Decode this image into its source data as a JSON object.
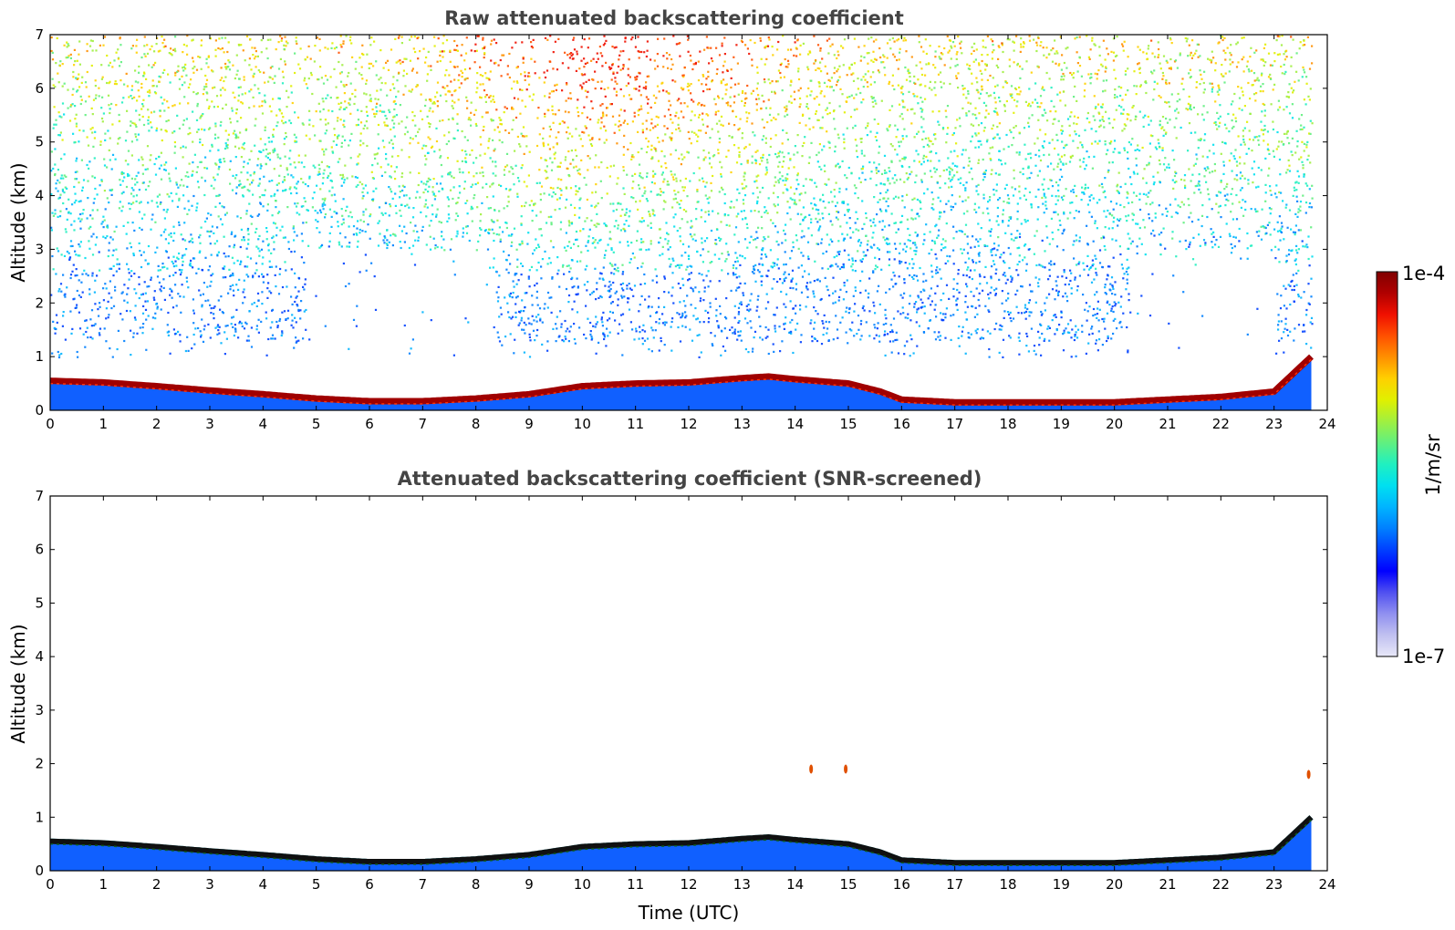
{
  "chart_data": [
    {
      "type": "heatmap",
      "title": "Raw attenuated backscattering coefficient",
      "xlabel": "",
      "ylabel": "Altitude (km)",
      "xlim": [
        0,
        24
      ],
      "ylim": [
        0,
        7
      ],
      "xticks": [
        "0",
        "1",
        "2",
        "3",
        "4",
        "5",
        "6",
        "7",
        "8",
        "9",
        "10",
        "11",
        "12",
        "13",
        "14",
        "15",
        "16",
        "17",
        "18",
        "19",
        "20",
        "21",
        "22",
        "23",
        "24"
      ],
      "yticks": [
        "0",
        "1",
        "2",
        "3",
        "4",
        "5",
        "6",
        "7"
      ],
      "data_end_hour": 23.7,
      "boundary_layer_top_km": {
        "x": [
          0,
          1,
          2,
          3,
          4,
          5,
          6,
          7,
          8,
          9,
          10,
          11,
          12,
          13,
          13.5,
          14,
          15,
          15.6,
          16,
          17,
          18,
          19,
          20,
          21,
          22,
          23,
          23.7
        ],
        "y": [
          0.55,
          0.52,
          0.45,
          0.37,
          0.3,
          0.22,
          0.17,
          0.17,
          0.22,
          0.3,
          0.45,
          0.5,
          0.52,
          0.6,
          0.63,
          0.58,
          0.5,
          0.35,
          0.2,
          0.15,
          0.15,
          0.15,
          0.15,
          0.2,
          0.25,
          0.35,
          1.0
        ]
      },
      "noise_field": "scattered noise, strongest (yellow-orange, ~1e-5) above 4 km around 9-12 UTC, sparse and blue near 1.2-2.5 km, clear gaps 5-8 UTC and 20-23 UTC below 3 km"
    },
    {
      "type": "heatmap",
      "title": "Attenuated backscattering coefficient (SNR-screened)",
      "xlabel": "Time (UTC)",
      "ylabel": "Altitude (km)",
      "xlim": [
        0,
        24
      ],
      "ylim": [
        0,
        7
      ],
      "xticks": [
        "0",
        "1",
        "2",
        "3",
        "4",
        "5",
        "6",
        "7",
        "8",
        "9",
        "10",
        "11",
        "12",
        "13",
        "14",
        "15",
        "16",
        "17",
        "18",
        "19",
        "20",
        "21",
        "22",
        "23",
        "24"
      ],
      "yticks": [
        "0",
        "1",
        "2",
        "3",
        "4",
        "5",
        "6",
        "7"
      ],
      "data_end_hour": 23.7,
      "boundary_layer_top_km": {
        "x": [
          0,
          1,
          2,
          3,
          4,
          5,
          6,
          7,
          8,
          9,
          10,
          11,
          12,
          13,
          13.5,
          14,
          15,
          15.6,
          16,
          17,
          18,
          19,
          20,
          21,
          22,
          23,
          23.7
        ],
        "y": [
          0.55,
          0.52,
          0.45,
          0.37,
          0.3,
          0.22,
          0.17,
          0.17,
          0.22,
          0.3,
          0.45,
          0.5,
          0.52,
          0.6,
          0.63,
          0.58,
          0.5,
          0.35,
          0.2,
          0.15,
          0.15,
          0.15,
          0.15,
          0.2,
          0.25,
          0.35,
          1.0
        ]
      },
      "isolated_returns": [
        {
          "x": 14.3,
          "y": 1.9
        },
        {
          "x": 14.95,
          "y": 1.9
        },
        {
          "x": 23.65,
          "y": 1.8
        }
      ]
    }
  ],
  "colorbar": {
    "label": "1/m/sr",
    "max_label": "1e-4",
    "min_label": "1e-7",
    "scale": "log",
    "colors": [
      "#e8e8f8",
      "#c0c0f0",
      "#9090f0",
      "#5050f0",
      "#0000ff",
      "#0040ff",
      "#0080ff",
      "#00b4ff",
      "#00e0f0",
      "#20f0c0",
      "#60f080",
      "#a0f040",
      "#e0f000",
      "#ffd000",
      "#ff9000",
      "#ff5000",
      "#f01000",
      "#b00000",
      "#800000"
    ]
  }
}
